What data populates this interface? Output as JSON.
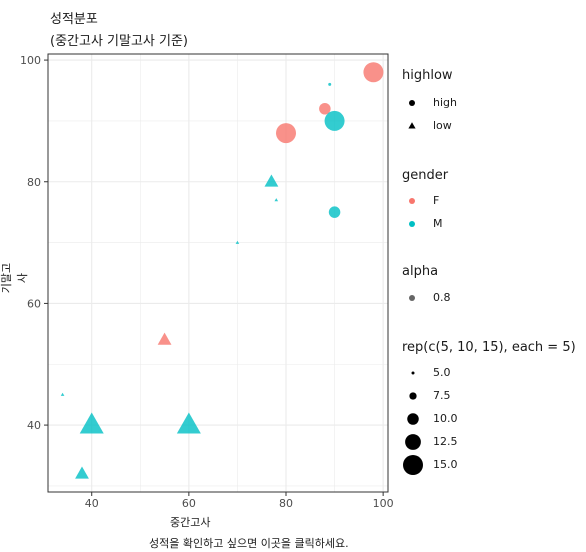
{
  "title": "성적분포",
  "subtitle": "(중간고사 기말고사 기준)",
  "caption": "성적을 확인하고 싶으면 이곳을 클릭하세요.",
  "colors": {
    "F": "#F8766D",
    "M": "#00BFC4",
    "panel": "#ffffff",
    "grid": "#ebebeb",
    "border": "#333333"
  },
  "chart_data": {
    "type": "scatter",
    "xlabel": "중간고사",
    "ylabel": "기말고사",
    "xlim": [
      31,
      101
    ],
    "ylim": [
      29,
      101
    ],
    "x_ticks": [
      40,
      60,
      80,
      100
    ],
    "y_ticks": [
      40,
      60,
      80,
      100
    ],
    "x_tick_labels": [
      "40",
      "60",
      "80",
      "100"
    ],
    "y_tick_labels": [
      "40",
      "60",
      "80",
      "100"
    ],
    "grid": true,
    "alpha": 0.8,
    "points": [
      {
        "x": 98,
        "y": 98,
        "gender": "F",
        "highlow": "high",
        "size": 15
      },
      {
        "x": 89,
        "y": 96,
        "gender": "M",
        "highlow": "high",
        "size": 5
      },
      {
        "x": 88,
        "y": 92,
        "gender": "F",
        "highlow": "high",
        "size": 10
      },
      {
        "x": 90,
        "y": 90,
        "gender": "M",
        "highlow": "high",
        "size": 15
      },
      {
        "x": 80,
        "y": 88,
        "gender": "F",
        "highlow": "high",
        "size": 15
      },
      {
        "x": 90,
        "y": 75,
        "gender": "M",
        "highlow": "high",
        "size": 10
      },
      {
        "x": 77,
        "y": 80,
        "gender": "M",
        "highlow": "low",
        "size": 10
      },
      {
        "x": 78,
        "y": 77,
        "gender": "M",
        "highlow": "low",
        "size": 5
      },
      {
        "x": 70,
        "y": 70,
        "gender": "M",
        "highlow": "low",
        "size": 5
      },
      {
        "x": 55,
        "y": 54,
        "gender": "F",
        "highlow": "low",
        "size": 10
      },
      {
        "x": 34,
        "y": 45,
        "gender": "M",
        "highlow": "low",
        "size": 5
      },
      {
        "x": 40,
        "y": 40,
        "gender": "M",
        "highlow": "low",
        "size": 15
      },
      {
        "x": 60,
        "y": 40,
        "gender": "M",
        "highlow": "low",
        "size": 15
      },
      {
        "x": 38,
        "y": 32,
        "gender": "M",
        "highlow": "low",
        "size": 10
      }
    ]
  },
  "legend": {
    "highlow": {
      "title": "highlow",
      "items": [
        {
          "label": "high",
          "shape": "circle"
        },
        {
          "label": "low",
          "shape": "triangle"
        }
      ]
    },
    "gender": {
      "title": "gender",
      "items": [
        {
          "label": "F",
          "color": "#F8766D"
        },
        {
          "label": "M",
          "color": "#00BFC4"
        }
      ]
    },
    "alpha": {
      "title": "alpha",
      "items": [
        {
          "label": "0.8"
        }
      ]
    },
    "size": {
      "title": "rep(c(5, 10, 15), each = 5)",
      "items": [
        {
          "label": "5.0",
          "value": 5
        },
        {
          "label": "7.5",
          "value": 7.5
        },
        {
          "label": "10.0",
          "value": 10
        },
        {
          "label": "12.5",
          "value": 12.5
        },
        {
          "label": "15.0",
          "value": 15
        }
      ]
    }
  }
}
